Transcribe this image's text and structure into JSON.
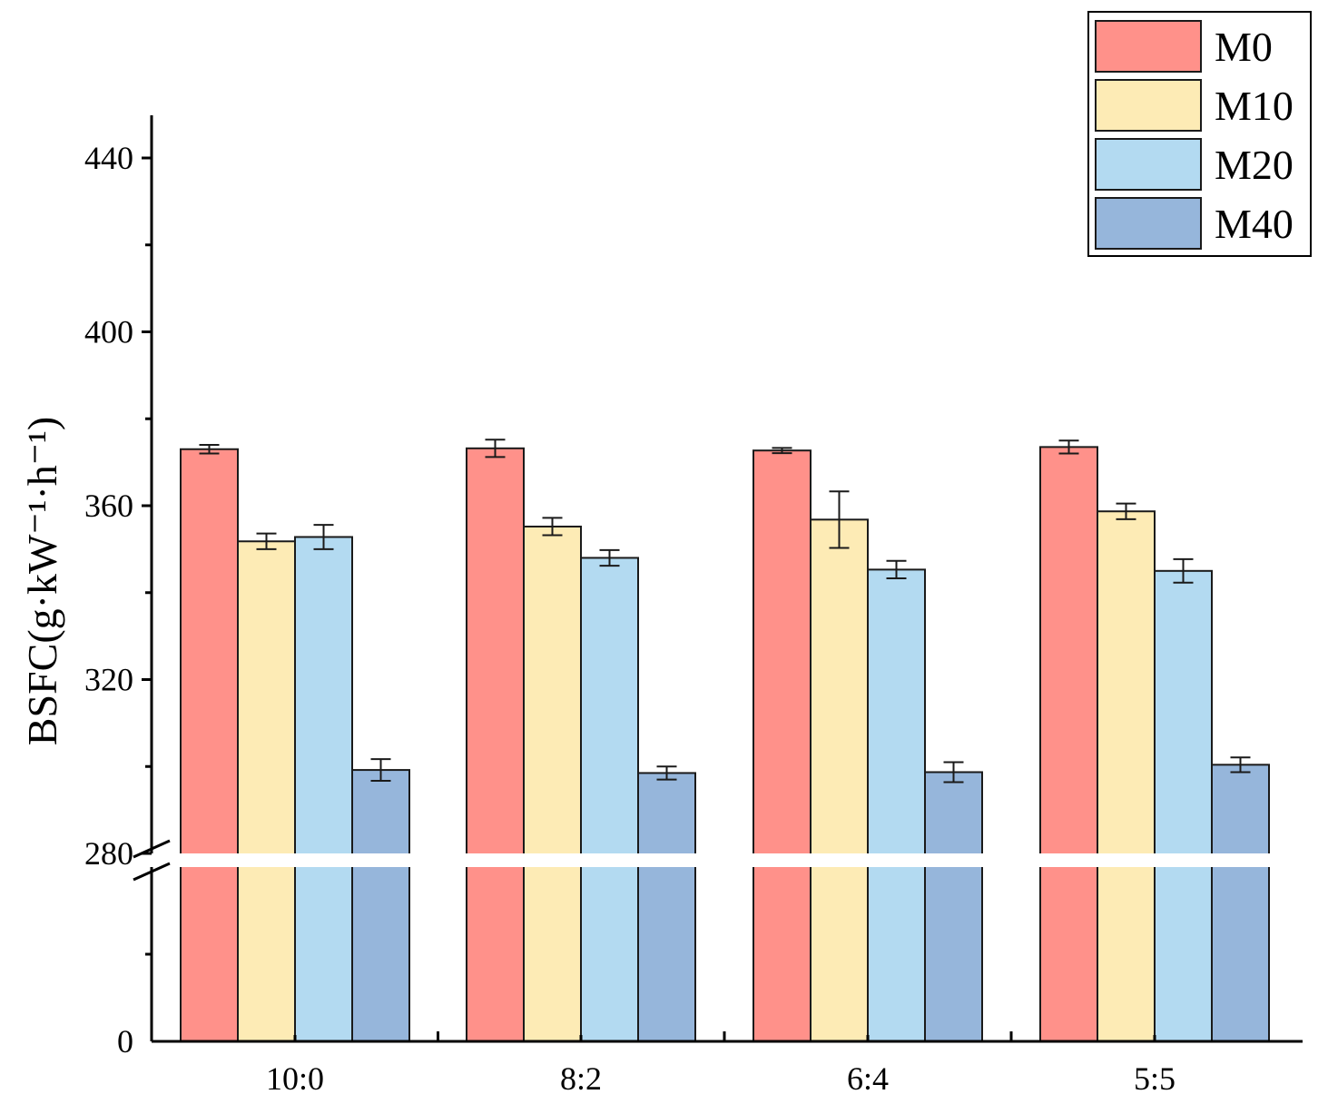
{
  "chart_data": {
    "type": "bar",
    "title": "",
    "xlabel": "",
    "ylabel": "BSFC(g·kW⁻¹·h⁻¹)",
    "categories": [
      "10:0",
      "8:2",
      "6:4",
      "5:5"
    ],
    "series": [
      {
        "name": "M0",
        "color": "#FF918A",
        "values": [
          373.0,
          373.2,
          372.7,
          373.5
        ],
        "errors": [
          1.0,
          2.0,
          0.6,
          1.5
        ]
      },
      {
        "name": "M10",
        "color": "#FDEBB5",
        "values": [
          351.8,
          355.2,
          356.8,
          358.7
        ],
        "errors": [
          1.8,
          2.0,
          6.5,
          1.8
        ]
      },
      {
        "name": "M20",
        "color": "#B3DAF1",
        "values": [
          352.8,
          348.0,
          345.3,
          345.0
        ],
        "errors": [
          2.8,
          1.8,
          2.0,
          2.7
        ]
      },
      {
        "name": "M40",
        "color": "#96B6DB",
        "values": [
          299.2,
          298.5,
          298.7,
          300.4
        ],
        "errors": [
          2.5,
          1.5,
          2.3,
          1.7
        ]
      }
    ],
    "y_ticks_upper": [
      "280",
      "320",
      "360",
      "400",
      "440"
    ],
    "y_ticks_lower": [
      "0"
    ],
    "axis_break": [
      0,
      280
    ],
    "ylim": [
      0,
      450
    ],
    "legend_position": "top-right"
  }
}
